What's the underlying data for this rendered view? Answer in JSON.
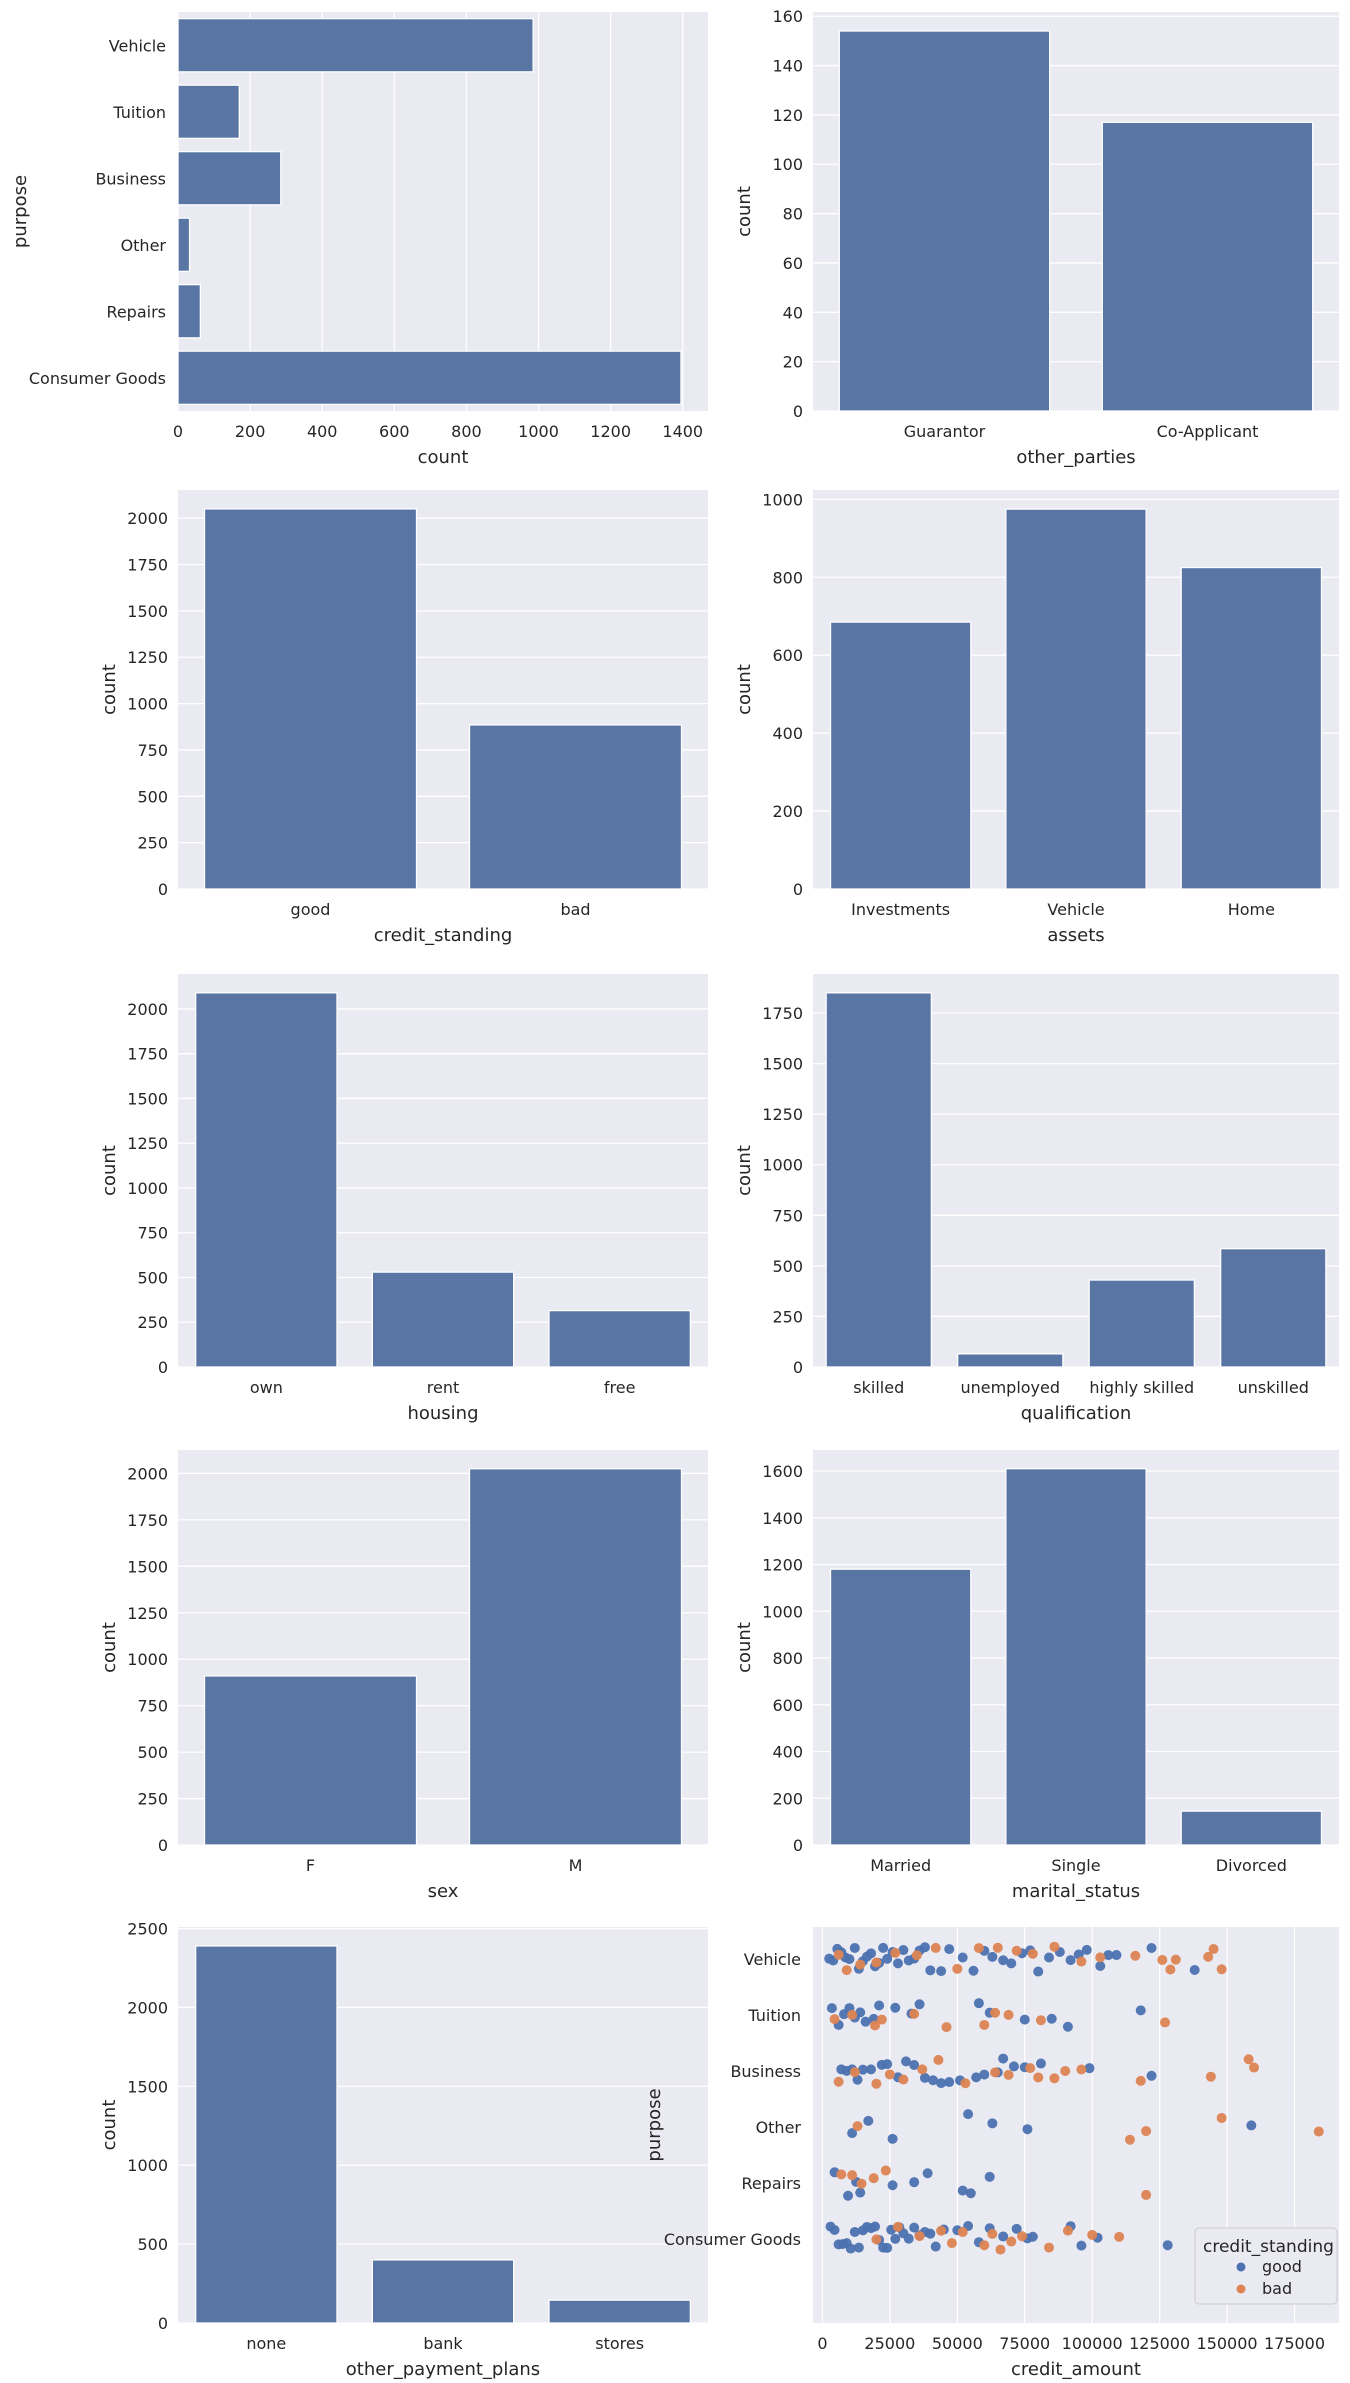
{
  "colors": {
    "background": "#eaeaf2",
    "grid": "#ffffff",
    "bar": "#5975a4",
    "good": "#4c72b0",
    "bad": "#dd8452"
  },
  "chart_data": [
    {
      "type": "bar",
      "orient": "h",
      "title": "",
      "xlabel": "count",
      "ylabel": "purpose",
      "categories": [
        "Vehicle",
        "Tuition",
        "Business",
        "Other",
        "Repairs",
        "Consumer Goods"
      ],
      "values": [
        985,
        170,
        285,
        32,
        62,
        1395
      ],
      "ticks": [
        "0",
        "200",
        "400",
        "600",
        "800",
        "1000",
        "1200",
        "1400"
      ],
      "lim": [
        0,
        1470
      ]
    },
    {
      "type": "bar",
      "orient": "v",
      "title": "",
      "xlabel": "other_parties",
      "ylabel": "count",
      "categories": [
        "Guarantor",
        "Co-Applicant"
      ],
      "values": [
        154,
        117
      ],
      "ticks": [
        "0",
        "20",
        "40",
        "60",
        "80",
        "100",
        "120",
        "140",
        "160"
      ],
      "lim": [
        0,
        161.7
      ]
    },
    {
      "type": "bar",
      "orient": "v",
      "title": "",
      "xlabel": "credit_standing",
      "ylabel": "count",
      "categories": [
        "good",
        "bad"
      ],
      "values": [
        2050,
        885
      ],
      "ticks": [
        "0",
        "250",
        "500",
        "750",
        "1000",
        "1250",
        "1500",
        "1750",
        "2000"
      ],
      "lim": [
        0,
        2152
      ]
    },
    {
      "type": "bar",
      "orient": "v",
      "title": "",
      "xlabel": "assets",
      "ylabel": "count",
      "categories": [
        "Investments",
        "Vehicle",
        "Home"
      ],
      "values": [
        685,
        975,
        825
      ],
      "ticks": [
        "0",
        "200",
        "400",
        "600",
        "800",
        "1000"
      ],
      "lim": [
        0,
        1024
      ]
    },
    {
      "type": "bar",
      "orient": "v",
      "title": "",
      "xlabel": "housing",
      "ylabel": "count",
      "categories": [
        "own",
        "rent",
        "free"
      ],
      "values": [
        2090,
        530,
        315
      ],
      "ticks": [
        "0",
        "250",
        "500",
        "750",
        "1000",
        "1250",
        "1500",
        "1750",
        "2000"
      ],
      "lim": [
        0,
        2195
      ]
    },
    {
      "type": "bar",
      "orient": "v",
      "title": "",
      "xlabel": "qualification",
      "ylabel": "count",
      "categories": [
        "skilled",
        "unemployed",
        "highly skilled",
        "unskilled"
      ],
      "values": [
        1850,
        65,
        430,
        585
      ],
      "ticks": [
        "0",
        "250",
        "500",
        "750",
        "1000",
        "1250",
        "1500",
        "1750"
      ],
      "lim": [
        0,
        1943
      ]
    },
    {
      "type": "bar",
      "orient": "v",
      "title": "",
      "xlabel": "sex",
      "ylabel": "count",
      "categories": [
        "F",
        "M"
      ],
      "values": [
        910,
        2025
      ],
      "ticks": [
        "0",
        "250",
        "500",
        "750",
        "1000",
        "1250",
        "1500",
        "1750",
        "2000"
      ],
      "lim": [
        0,
        2126
      ]
    },
    {
      "type": "bar",
      "orient": "v",
      "title": "",
      "xlabel": "marital_status",
      "ylabel": "count",
      "categories": [
        "Married",
        "Single",
        "Divorced"
      ],
      "values": [
        1180,
        1610,
        145
      ],
      "ticks": [
        "0",
        "200",
        "400",
        "600",
        "800",
        "1000",
        "1200",
        "1400",
        "1600"
      ],
      "lim": [
        0,
        1690
      ]
    },
    {
      "type": "bar",
      "orient": "v",
      "title": "",
      "xlabel": "other_payment_plans",
      "ylabel": "count",
      "categories": [
        "none",
        "bank",
        "stores"
      ],
      "values": [
        2390,
        400,
        145
      ],
      "ticks": [
        "0",
        "500",
        "1000",
        "1500",
        "2000",
        "2500"
      ],
      "lim": [
        0,
        2510
      ]
    },
    {
      "type": "scatter",
      "orient": "h",
      "title": "",
      "xlabel": "credit_amount",
      "ylabel": "purpose",
      "categories": [
        "Vehicle",
        "Tuition",
        "Business",
        "Other",
        "Repairs",
        "Consumer Goods"
      ],
      "ticks": [
        "0",
        "25000",
        "50000",
        "75000",
        "100000",
        "125000",
        "150000",
        "175000"
      ],
      "lim": [
        -3500,
        191500
      ],
      "legend": {
        "title": "credit_standing",
        "entries": [
          "good",
          "bad"
        ],
        "placement": "bottom-right"
      },
      "series": [
        {
          "name": "good",
          "points": {
            "Vehicle": [
              2500,
              4000,
              5500,
              7000,
              8500,
              10000,
              12000,
              13500,
              15000,
              16500,
              18000,
              19500,
              21000,
              22500,
              24000,
              26000,
              28000,
              30000,
              32000,
              34000,
              36000,
              38000,
              40000,
              44000,
              47000,
              52000,
              56000,
              60000,
              63000,
              67000,
              70000,
              74000,
              77000,
              80000,
              84000,
              88000,
              92000,
              95000,
              98000,
              103000,
              106000,
              109000,
              122000,
              138000
            ],
            "Tuition": [
              3500,
              6000,
              8000,
              10000,
              12000,
              14000,
              16000,
              19000,
              21000,
              27000,
              33000,
              36000,
              58000,
              62000,
              75000,
              85000,
              91000,
              118000
            ],
            "Business": [
              7000,
              9000,
              11000,
              13000,
              15000,
              18000,
              22000,
              24000,
              28000,
              31000,
              34000,
              38000,
              41000,
              44000,
              47000,
              51000,
              57000,
              60000,
              65000,
              67000,
              71000,
              75000,
              81000,
              99000,
              122000
            ],
            "Other": [
              11000,
              17000,
              26000,
              54000,
              63000,
              76000,
              159000
            ],
            "Repairs": [
              4500,
              9500,
              12500,
              14000,
              26000,
              34000,
              39000,
              52000,
              55000,
              62000
            ],
            "Consumer Goods": [
              3000,
              4500,
              6000,
              7500,
              9000,
              10500,
              12000,
              13500,
              15000,
              16500,
              18000,
              19500,
              21000,
              22500,
              24000,
              25500,
              27000,
              28500,
              30000,
              32000,
              34000,
              36000,
              38000,
              40000,
              42000,
              45000,
              50000,
              54000,
              58000,
              62000,
              67000,
              72000,
              76000,
              78000,
              92000,
              96000,
              102000,
              128000
            ]
          }
        },
        {
          "name": "bad",
          "points": {
            "Vehicle": [
              6000,
              9000,
              14000,
              20000,
              27000,
              35000,
              42000,
              50000,
              58000,
              65000,
              72000,
              78000,
              86000,
              96000,
              103000,
              116000,
              126000,
              129000,
              131000,
              143000,
              145000,
              148000
            ],
            "Tuition": [
              4500,
              11000,
              19500,
              22000,
              34000,
              46000,
              60000,
              64000,
              69000,
              81000,
              127000
            ],
            "Business": [
              6000,
              12000,
              20000,
              25000,
              30000,
              37000,
              43000,
              53000,
              64000,
              69000,
              77000,
              80000,
              86000,
              90000,
              96000,
              118000,
              144000,
              158000,
              160000
            ],
            "Other": [
              13000,
              114000,
              120000,
              148000,
              184000
            ],
            "Repairs": [
              7000,
              11000,
              14500,
              19000,
              23500,
              120000
            ],
            "Consumer Goods": [
              20000,
              28000,
              36000,
              44000,
              48000,
              52000,
              60000,
              63000,
              66000,
              70000,
              74000,
              84000,
              91000,
              100000,
              110000
            ]
          }
        }
      ]
    }
  ]
}
